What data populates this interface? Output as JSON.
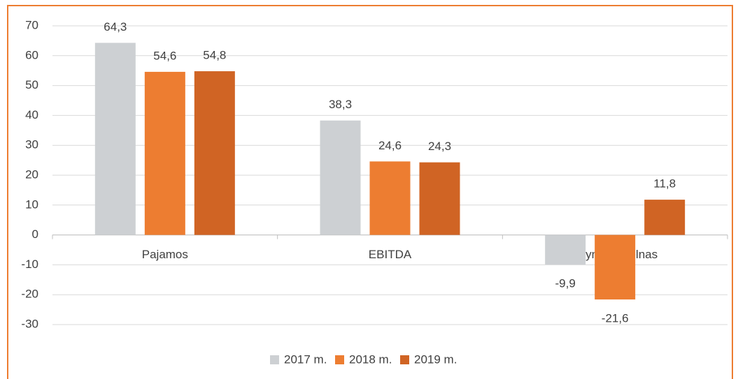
{
  "chart_data": {
    "type": "bar",
    "categories": [
      "Pajamos",
      "EBITDA",
      "Grynasis pelnas"
    ],
    "series": [
      {
        "name": "2017 m.",
        "color": "#cdd0d3",
        "values": [
          64.3,
          38.3,
          -9.9
        ],
        "value_labels": [
          "64,3",
          "38,3",
          "-9,9"
        ]
      },
      {
        "name": "2018 m.",
        "color": "#ed7d31",
        "values": [
          54.6,
          24.6,
          -21.6
        ],
        "value_labels": [
          "54,6",
          "24,6",
          "-21,6"
        ]
      },
      {
        "name": "2019 m.",
        "color": "#d06424",
        "values": [
          54.8,
          24.3,
          11.8
        ],
        "value_labels": [
          "54,8",
          "24,3",
          "11,8"
        ]
      }
    ],
    "ylim": [
      -30,
      70
    ],
    "yticks": [
      -30,
      -20,
      -10,
      0,
      10,
      20,
      30,
      40,
      50,
      60,
      70
    ],
    "grid": true
  }
}
